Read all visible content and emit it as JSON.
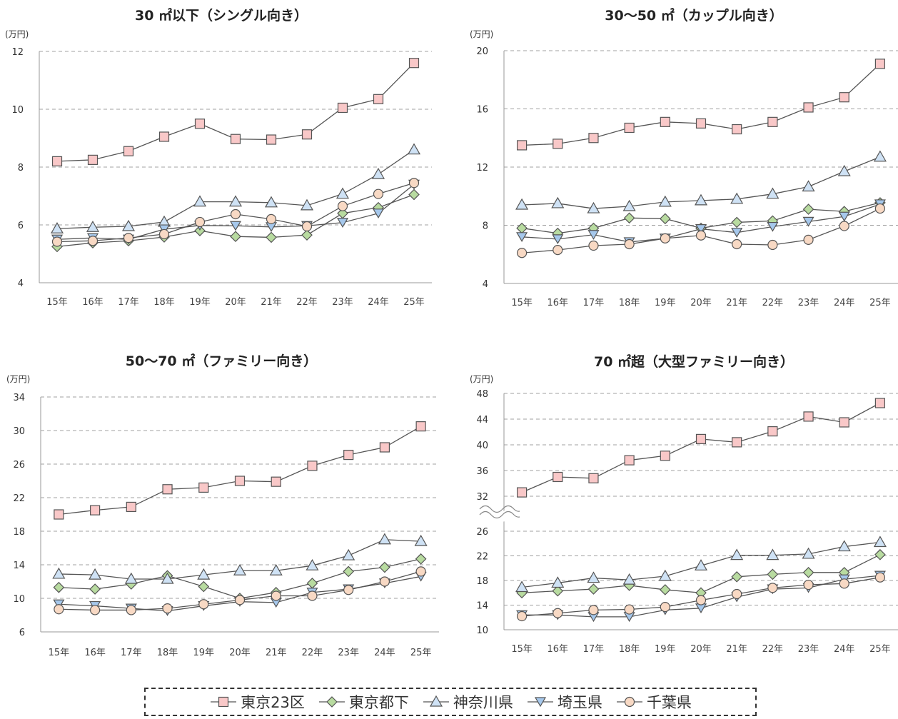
{
  "unit": "(万円)",
  "colors": {
    "tokyo23": "#f9c8c8",
    "tokyo_other": "#b8dba0",
    "kanagawa": "#cfe2f5",
    "saitama": "#a6c8ec",
    "chiba": "#f8d9c4",
    "line": "#555555",
    "grid": "#a0a0a0"
  },
  "legend": [
    {
      "label": "東京23区",
      "marker": "square",
      "color_key": "tokyo23"
    },
    {
      "label": "東京都下",
      "marker": "diamond",
      "color_key": "tokyo_other"
    },
    {
      "label": "神奈川県",
      "marker": "triangle-up",
      "color_key": "kanagawa"
    },
    {
      "label": "埼玉県",
      "marker": "triangle-down",
      "color_key": "saitama"
    },
    {
      "label": "千葉県",
      "marker": "circle",
      "color_key": "chiba"
    }
  ],
  "chart_data": [
    {
      "type": "line",
      "title": "30 ㎡以下（シングル向き）",
      "ylabel": "(万円)",
      "categories": [
        "15年",
        "16年",
        "17年",
        "18年",
        "19年",
        "20年",
        "21年",
        "22年",
        "23年",
        "24年",
        "25年"
      ],
      "yticks": [
        4,
        6,
        8,
        10,
        12
      ],
      "ylim": [
        4,
        12
      ],
      "grid": true,
      "series": [
        {
          "name": "東京23区",
          "values": [
            8.2,
            8.25,
            8.55,
            9.05,
            9.5,
            8.97,
            8.95,
            9.13,
            10.05,
            10.35,
            11.6
          ]
        },
        {
          "name": "東京都下",
          "values": [
            5.25,
            5.38,
            5.45,
            5.58,
            5.8,
            5.6,
            5.57,
            5.65,
            6.4,
            6.6,
            7.05
          ]
        },
        {
          "name": "神奈川県",
          "values": [
            5.87,
            5.92,
            5.95,
            6.1,
            6.8,
            6.8,
            6.77,
            6.67,
            7.07,
            7.75,
            8.6
          ]
        },
        {
          "name": "埼玉県",
          "values": [
            5.5,
            5.55,
            5.5,
            5.85,
            5.98,
            5.97,
            5.93,
            5.97,
            6.08,
            6.4,
            7.4
          ]
        },
        {
          "name": "千葉県",
          "values": [
            5.42,
            5.45,
            5.55,
            5.68,
            6.1,
            6.37,
            6.2,
            5.95,
            6.65,
            7.07,
            7.45
          ]
        }
      ]
    },
    {
      "type": "line",
      "title": "30～50 ㎡（カップル向き）",
      "ylabel": "(万円)",
      "categories": [
        "15年",
        "16年",
        "17年",
        "18年",
        "19年",
        "20年",
        "21年",
        "22年",
        "23年",
        "24年",
        "25年"
      ],
      "yticks": [
        4,
        8,
        12,
        16,
        20
      ],
      "ylim": [
        4,
        20
      ],
      "grid": true,
      "series": [
        {
          "name": "東京23区",
          "values": [
            13.5,
            13.6,
            14.0,
            14.7,
            15.1,
            15.0,
            14.6,
            15.1,
            16.1,
            16.8,
            19.1
          ]
        },
        {
          "name": "東京都下",
          "values": [
            7.8,
            7.45,
            7.8,
            8.5,
            8.45,
            7.8,
            8.2,
            8.3,
            9.1,
            8.95,
            9.55
          ]
        },
        {
          "name": "神奈川県",
          "values": [
            9.4,
            9.5,
            9.15,
            9.3,
            9.6,
            9.7,
            9.8,
            10.15,
            10.65,
            11.7,
            12.7
          ]
        },
        {
          "name": "埼玉県",
          "values": [
            7.2,
            7.05,
            7.35,
            6.85,
            7.1,
            7.75,
            7.5,
            7.9,
            8.25,
            8.6,
            9.45
          ]
        },
        {
          "name": "千葉県",
          "values": [
            6.1,
            6.3,
            6.6,
            6.7,
            7.1,
            7.3,
            6.7,
            6.65,
            7.0,
            7.95,
            9.15
          ]
        }
      ]
    },
    {
      "type": "line",
      "title": "50～70 ㎡（ファミリー向き）",
      "ylabel": "(万円)",
      "categories": [
        "15年",
        "16年",
        "17年",
        "18年",
        "19年",
        "20年",
        "21年",
        "22年",
        "23年",
        "24年",
        "25年"
      ],
      "yticks": [
        6,
        10,
        14,
        18,
        22,
        26,
        30,
        34
      ],
      "ylim": [
        6,
        34
      ],
      "grid": true,
      "series": [
        {
          "name": "東京23区",
          "values": [
            20.0,
            20.5,
            20.9,
            23.0,
            23.2,
            24.0,
            23.9,
            25.8,
            27.1,
            28.0,
            30.5
          ]
        },
        {
          "name": "東京都下",
          "values": [
            11.3,
            11.1,
            11.7,
            12.7,
            11.4,
            10.0,
            10.7,
            11.8,
            13.2,
            13.7,
            14.7
          ]
        },
        {
          "name": "神奈川県",
          "values": [
            12.9,
            12.8,
            12.3,
            12.3,
            12.8,
            13.3,
            13.3,
            13.9,
            15.1,
            17.0,
            16.8
          ]
        },
        {
          "name": "埼玉県",
          "values": [
            9.3,
            9.1,
            8.8,
            8.5,
            9.1,
            9.6,
            9.5,
            10.7,
            11.1,
            11.8,
            12.6
          ]
        },
        {
          "name": "千葉県",
          "values": [
            8.7,
            8.6,
            8.6,
            8.8,
            9.3,
            9.8,
            10.3,
            10.3,
            11.0,
            12.0,
            13.2
          ]
        }
      ]
    },
    {
      "type": "line",
      "title": "70 ㎡超（大型ファミリー向き）",
      "ylabel": "(万円)",
      "categories": [
        "15年",
        "16年",
        "17年",
        "18年",
        "19年",
        "20年",
        "21年",
        "22年",
        "23年",
        "24年",
        "25年"
      ],
      "yticks_upper": [
        32,
        36,
        40,
        44,
        48
      ],
      "yticks_lower": [
        10,
        14,
        18,
        22,
        26
      ],
      "axis_break": true,
      "grid": true,
      "series": [
        {
          "name": "東京23区",
          "values": [
            32.6,
            35.0,
            34.8,
            37.6,
            38.3,
            40.9,
            40.4,
            42.1,
            44.4,
            43.5,
            46.5
          ]
        },
        {
          "name": "東京都下",
          "values": [
            16.0,
            16.3,
            16.6,
            17.2,
            16.5,
            16.0,
            18.6,
            19.0,
            19.3,
            19.3,
            22.2
          ]
        },
        {
          "name": "神奈川県",
          "values": [
            16.9,
            17.6,
            18.4,
            18.1,
            18.7,
            20.4,
            22.1,
            22.1,
            22.3,
            23.5,
            24.2
          ]
        },
        {
          "name": "埼玉県",
          "values": [
            12.4,
            12.4,
            12.1,
            12.1,
            13.2,
            13.5,
            15.3,
            16.6,
            16.8,
            18.2,
            18.8
          ]
        },
        {
          "name": "千葉県",
          "values": [
            12.2,
            12.7,
            13.2,
            13.3,
            13.7,
            14.8,
            15.8,
            16.8,
            17.3,
            17.5,
            18.5
          ]
        }
      ]
    }
  ]
}
